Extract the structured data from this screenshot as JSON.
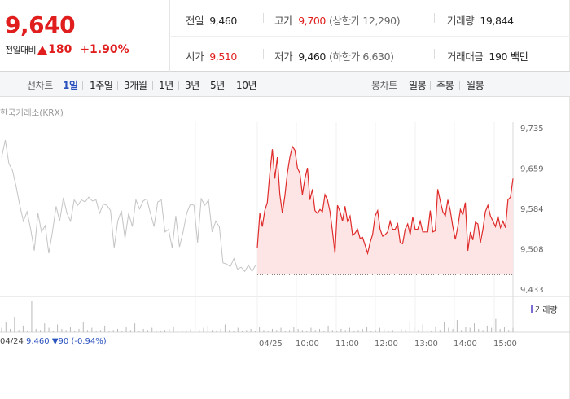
{
  "quote": {
    "price": "9,640",
    "change_label": "전일대비",
    "change_value": "180",
    "change_rate": "+1.90%"
  },
  "stats": {
    "prev_close_label": "전일",
    "prev_close": "9,460",
    "high_label": "고가",
    "high": "9,700",
    "upper_limit": "(상한가 12,290)",
    "volume_label": "거래량",
    "volume": "19,844",
    "open_label": "시가",
    "open": "9,510",
    "low_label": "저가",
    "low": "9,460",
    "lower_limit": "(하한가 6,630)",
    "amount_label": "거래대금",
    "amount": "190 백만"
  },
  "toolbar": {
    "line_label": "선차트",
    "periods": [
      "1일",
      "1주일",
      "3개월",
      "1년",
      "3년",
      "5년",
      "10년"
    ],
    "selected_period": "1일",
    "candle_label": "봉차트",
    "candles": [
      "일봉",
      "주봉",
      "월봉"
    ]
  },
  "chart": {
    "source": "한국거래소(KRX)",
    "volume_legend": "거래량",
    "prev_summary_date": "04/24",
    "prev_summary_price": "9,460",
    "prev_summary_change": "▼90 (-0.94%)",
    "colors": {
      "today": "#e02b2b",
      "prev": "#c4c4c4",
      "fill": "#fde5e5",
      "volume": "#b9b9b9",
      "legend": "#7b6fd6"
    }
  },
  "chart_data": {
    "type": "line",
    "title": "",
    "y_ticks": [
      "9,735",
      "9,659",
      "9,584",
      "9,508",
      "9,433"
    ],
    "ylim": [
      9433,
      9735
    ],
    "x_ticks": [
      "04/24",
      "04/25",
      "10:00",
      "11:00",
      "12:00",
      "13:00",
      "14:00",
      "15:00"
    ],
    "reference_line": 9460,
    "series": [
      {
        "values": [
          9680,
          9712,
          9668,
          9655,
          9625,
          9590,
          9560,
          9578,
          9545,
          9505,
          9575,
          9540,
          9552,
          9500,
          9540,
          9588,
          9560,
          9604,
          9575,
          9560,
          9600,
          9590,
          9600,
          9596,
          9605,
          9598,
          9600,
          9575,
          9592,
          9590,
          9580,
          9510,
          9560,
          9580,
          9528,
          9575,
          9550,
          9600,
          9583,
          9598,
          9602,
          9575,
          9550,
          9596,
          9600,
          9540,
          9545,
          9510,
          9570,
          9512,
          9540,
          9575,
          9592,
          9590,
          9520,
          9602,
          9590,
          9600,
          9540,
          9560,
          9550,
          9482,
          9480,
          9475,
          9490,
          9470,
          9474,
          9466,
          9478,
          9466,
          9478
        ]
      },
      {
        "values": [
          9510,
          9575,
          9550,
          9580,
          9595,
          9650,
          9695,
          9640,
          9680,
          9610,
          9575,
          9608,
          9650,
          9680,
          9700,
          9693,
          9660,
          9650,
          9610,
          9640,
          9660,
          9600,
          9620,
          9580,
          9575,
          9582,
          9578,
          9610,
          9600,
          9578,
          9540,
          9500,
          9590,
          9578,
          9560,
          9588,
          9560,
          9570,
          9534,
          9538,
          9545,
          9528,
          9530,
          9515,
          9500,
          9520,
          9535,
          9570,
          9580,
          9545,
          9532,
          9535,
          9540,
          9560,
          9545,
          9545,
          9555,
          9520,
          9518,
          9545,
          9555,
          9535,
          9568,
          9545,
          9545,
          9560,
          9540,
          9540,
          9540,
          9580,
          9540,
          9542,
          9620,
          9598,
          9578,
          9570,
          9600,
          9580,
          9550,
          9526,
          9550,
          9582,
          9572,
          9595,
          9505,
          9540,
          9525,
          9558,
          9555,
          9520,
          9545,
          9578,
          9590,
          9570,
          9560,
          9550,
          9570,
          9548,
          9560,
          9548,
          9600,
          9605,
          9640
        ]
      }
    ],
    "volume_values": [
      4,
      9,
      3,
      14,
      2,
      6,
      1,
      28,
      3,
      2,
      8,
      4,
      1,
      7,
      3,
      2,
      5,
      1,
      3,
      9,
      2,
      4,
      1,
      2,
      6,
      1,
      2,
      3,
      1,
      5,
      2,
      8,
      1,
      3,
      2,
      4,
      1,
      1,
      2,
      3,
      5,
      1,
      2,
      1,
      3,
      1,
      2,
      4,
      6,
      2,
      1,
      3,
      7,
      2,
      1,
      4,
      1,
      2,
      3,
      1,
      5,
      2,
      1,
      3,
      2,
      4,
      1,
      2,
      5,
      3,
      2,
      1,
      4,
      2,
      3,
      1,
      6,
      2,
      1,
      3,
      2,
      4,
      1,
      2,
      3,
      5,
      1,
      2,
      4,
      3,
      1,
      2,
      6,
      3,
      2,
      10,
      4,
      2,
      7,
      3,
      1,
      5,
      2,
      9,
      4,
      3,
      11,
      2,
      5,
      4,
      8,
      3,
      2,
      6,
      4,
      12,
      3,
      5,
      2,
      4
    ]
  }
}
